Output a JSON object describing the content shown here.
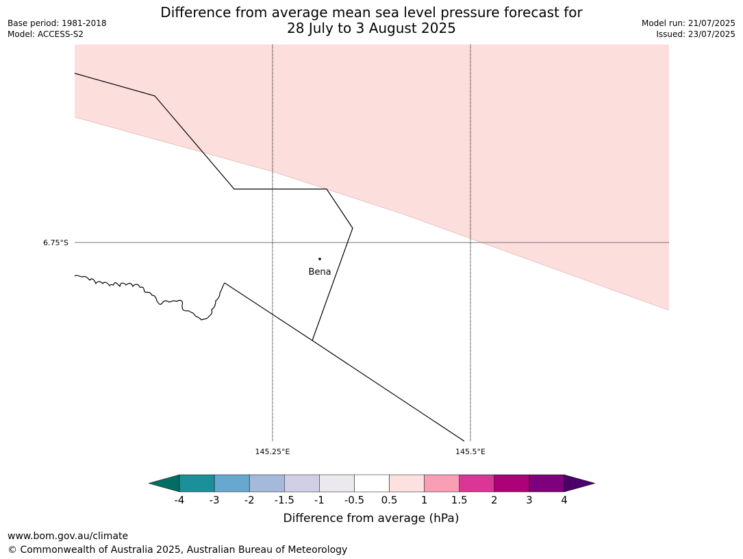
{
  "header": {
    "title_line1": "Difference from average mean sea level pressure forecast for",
    "title_line2": "28 July to 3 August 2025",
    "base_period": "Base period: 1981-2018",
    "model": "Model: ACCESS-S2",
    "model_run": "Model run: 21/07/2025",
    "issued": "Issued: 23/07/2025"
  },
  "map": {
    "lat_label": "6.75°S",
    "lon_labels": [
      "145.25°E",
      "145.5°E"
    ],
    "place": "Bena",
    "anomaly_fill_color": "#fcdedc"
  },
  "legend": {
    "title": "Difference from average (hPa)",
    "ticks": [
      "-4",
      "-3",
      "-2",
      "-1.5",
      "-1",
      "-0.5",
      "0.5",
      "1",
      "1.5",
      "2",
      "3",
      "4"
    ],
    "colors": [
      "#006e62",
      "#1b9098",
      "#67a8d0",
      "#a5badb",
      "#d0cfe6",
      "#ebe9ee",
      "#ffffff",
      "#fde0e0",
      "#f89fb6",
      "#db3596",
      "#ae0079",
      "#7f007c",
      "#4b006b"
    ]
  },
  "footer": {
    "url": "www.bom.gov.au/climate",
    "copyright": "© Commonwealth of Australia 2025, Australian Bureau of Meteorology"
  }
}
